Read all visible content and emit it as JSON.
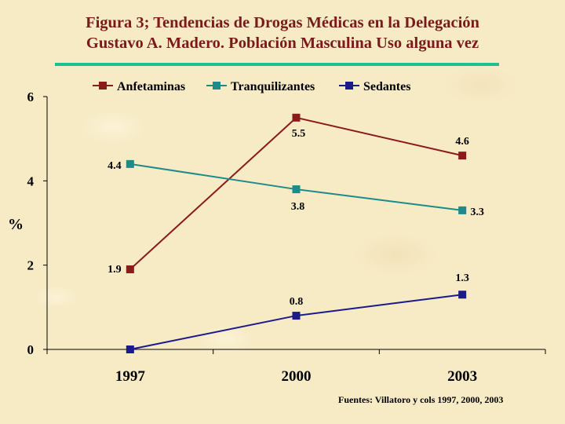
{
  "title_line1": "Figura 3; Tendencias de Drogas Médicas en  la Delegación",
  "title_line2": "Gustavo A. Madero. Población Masculina Uso alguna vez",
  "source": "Fuentes: Villatoro y cols 1997, 2000, 2003",
  "colors": {
    "title": "#7a1a1a",
    "rule": "#1fbf8f"
  },
  "chart_data": {
    "type": "line",
    "x": [
      "1997",
      "2000",
      "2003"
    ],
    "ylabel": "%",
    "ylim": [
      0,
      6
    ],
    "yticks": [
      "0",
      "2",
      "4",
      "6"
    ],
    "grid": false,
    "legend_position": "top",
    "series": [
      {
        "name": "Anfetaminas",
        "color": "#8b1a1a",
        "values": [
          1.9,
          5.5,
          4.6
        ],
        "labels": [
          "1.9",
          "5.5",
          "4.6"
        ]
      },
      {
        "name": "Tranquilizantes",
        "color": "#1f8a8a",
        "values": [
          4.4,
          3.8,
          3.3
        ],
        "labels": [
          "4.4",
          "3.8",
          "3.3"
        ]
      },
      {
        "name": "Sedantes",
        "color": "#1a1a8b",
        "values": [
          0,
          0.8,
          1.3
        ],
        "labels": [
          "",
          "0.8",
          "1.3"
        ]
      }
    ]
  }
}
